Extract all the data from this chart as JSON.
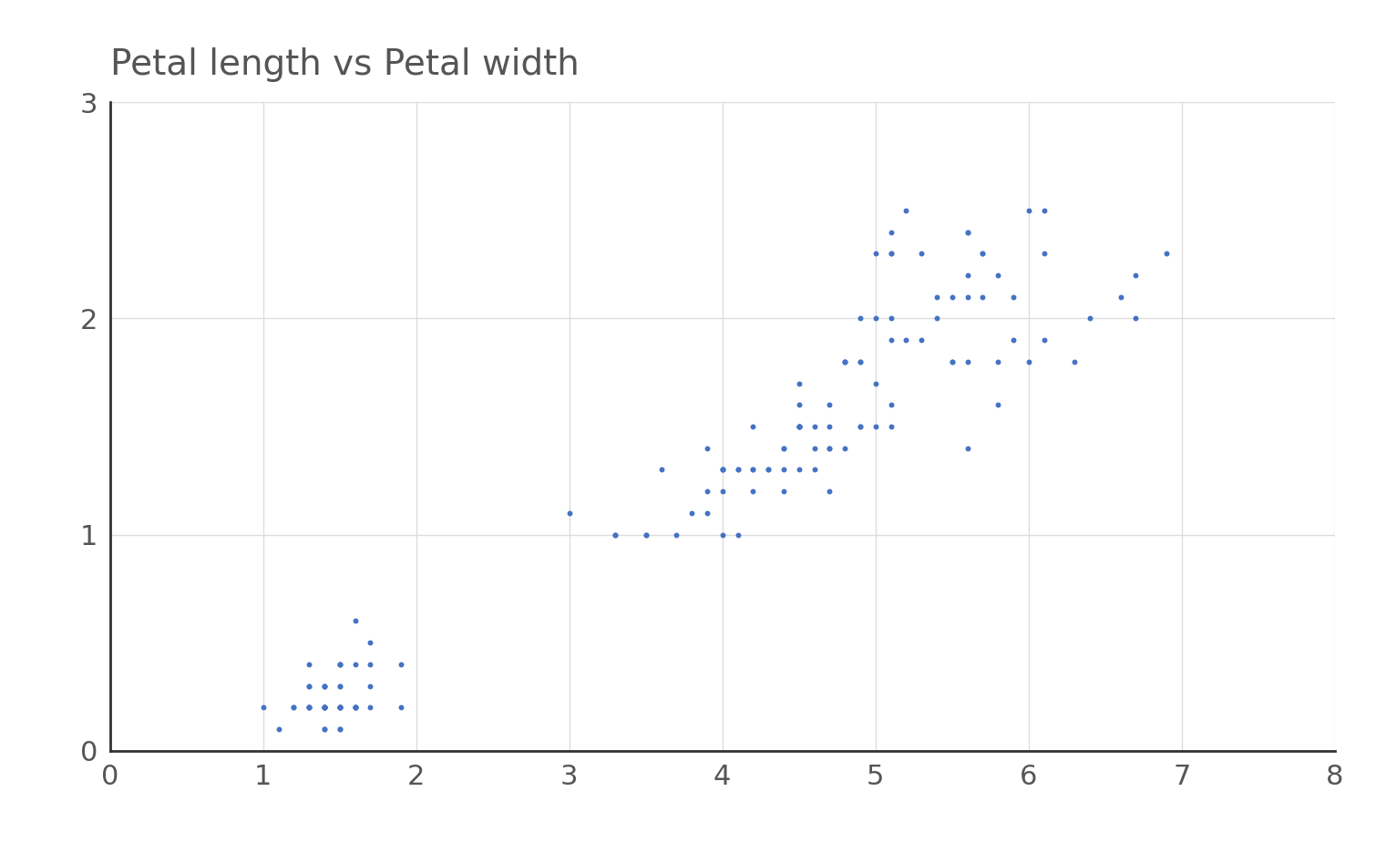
{
  "title": "Petal length vs Petal width",
  "title_fontsize": 28,
  "title_color": "#555555",
  "xlim": [
    0,
    8
  ],
  "ylim": [
    0,
    3
  ],
  "xticks": [
    0,
    1,
    2,
    3,
    4,
    5,
    6,
    7,
    8
  ],
  "yticks": [
    0,
    1,
    2,
    3
  ],
  "dot_color": "#4472C4",
  "dot_size": 18,
  "background_color": "#ffffff",
  "grid_color": "#dddddd",
  "petal_length": [
    1.4,
    1.4,
    1.3,
    1.5,
    1.4,
    1.7,
    1.4,
    1.5,
    1.4,
    1.5,
    1.5,
    1.6,
    1.4,
    1.1,
    1.2,
    1.5,
    1.3,
    1.4,
    1.7,
    1.5,
    1.7,
    1.5,
    1.0,
    1.7,
    1.9,
    1.6,
    1.6,
    1.5,
    1.4,
    1.6,
    1.6,
    1.5,
    1.5,
    1.4,
    1.5,
    1.2,
    1.3,
    1.4,
    1.3,
    1.5,
    1.3,
    1.3,
    1.3,
    1.6,
    1.9,
    1.4,
    1.6,
    1.4,
    1.5,
    1.4,
    4.7,
    4.5,
    4.9,
    4.0,
    4.6,
    4.5,
    4.7,
    3.3,
    4.6,
    3.9,
    3.5,
    4.2,
    4.0,
    4.7,
    3.6,
    4.4,
    4.5,
    4.1,
    4.5,
    3.9,
    4.8,
    4.0,
    4.9,
    4.7,
    4.3,
    4.4,
    4.8,
    5.0,
    4.5,
    3.5,
    3.8,
    3.7,
    3.9,
    5.1,
    4.5,
    4.5,
    4.7,
    4.4,
    4.1,
    4.0,
    4.4,
    4.6,
    4.0,
    3.3,
    4.2,
    4.2,
    4.2,
    4.3,
    3.0,
    4.1,
    6.0,
    5.1,
    5.9,
    5.6,
    5.8,
    6.6,
    4.5,
    6.3,
    5.8,
    6.1,
    5.1,
    5.3,
    5.5,
    5.0,
    5.1,
    5.3,
    5.5,
    6.7,
    6.9,
    5.0,
    5.7,
    4.9,
    6.7,
    4.9,
    5.7,
    6.0,
    4.8,
    4.9,
    5.6,
    5.8,
    6.1,
    6.4,
    5.6,
    5.1,
    5.6,
    6.1,
    5.6,
    5.5,
    4.8,
    5.4,
    5.6,
    5.1,
    5.9,
    5.7,
    5.2,
    5.0,
    5.2,
    5.4,
    5.1
  ],
  "petal_width": [
    0.2,
    0.2,
    0.2,
    0.2,
    0.2,
    0.4,
    0.3,
    0.2,
    0.2,
    0.1,
    0.2,
    0.2,
    0.1,
    0.1,
    0.2,
    0.4,
    0.4,
    0.3,
    0.3,
    0.3,
    0.2,
    0.4,
    0.2,
    0.5,
    0.2,
    0.2,
    0.4,
    0.2,
    0.2,
    0.2,
    0.2,
    0.4,
    0.1,
    0.2,
    0.2,
    0.2,
    0.2,
    0.1,
    0.2,
    0.3,
    0.3,
    0.3,
    0.2,
    0.6,
    0.4,
    0.3,
    0.2,
    0.2,
    0.2,
    0.2,
    1.4,
    1.5,
    1.5,
    1.3,
    1.5,
    1.3,
    1.6,
    1.0,
    1.3,
    1.4,
    1.0,
    1.5,
    1.0,
    1.4,
    1.3,
    1.4,
    1.5,
    1.0,
    1.5,
    1.1,
    1.8,
    1.3,
    1.5,
    1.2,
    1.3,
    1.4,
    1.4,
    1.7,
    1.5,
    1.0,
    1.1,
    1.0,
    1.2,
    1.6,
    1.5,
    1.6,
    1.5,
    1.3,
    1.3,
    1.3,
    1.2,
    1.4,
    1.2,
    1.0,
    1.3,
    1.2,
    1.3,
    1.3,
    1.1,
    1.3,
    2.5,
    1.9,
    2.1,
    1.8,
    2.2,
    2.1,
    1.7,
    1.8,
    1.8,
    2.5,
    2.0,
    1.9,
    2.1,
    2.0,
    2.4,
    2.3,
    1.8,
    2.2,
    2.3,
    1.5,
    2.3,
    2.0,
    2.0,
    1.8,
    2.1,
    1.8,
    1.8,
    1.8,
    2.1,
    1.6,
    1.9,
    2.0,
    2.2,
    1.5,
    1.4,
    2.3,
    2.4,
    1.8,
    1.8,
    2.1,
    2.4,
    2.3,
    1.9,
    2.3,
    2.5,
    2.3,
    1.9,
    2.0,
    2.3
  ]
}
